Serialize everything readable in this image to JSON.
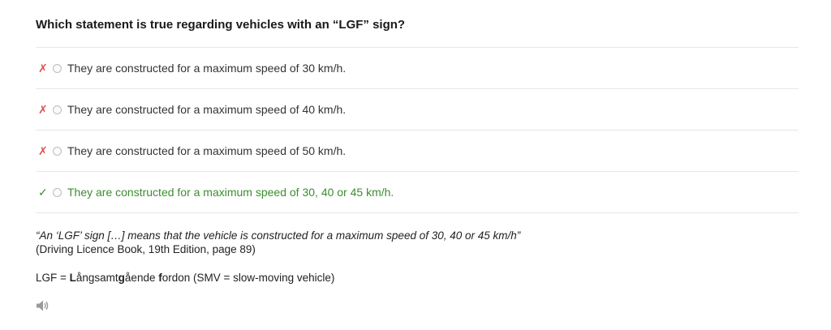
{
  "question": "Which statement is true regarding vehicles with an “LGF” sign?",
  "options": [
    {
      "mark": "✗",
      "status": "wrong",
      "text": "They are constructed for a maximum speed of 30 km/h."
    },
    {
      "mark": "✗",
      "status": "wrong",
      "text": "They are constructed for a maximum speed of 40 km/h."
    },
    {
      "mark": "✗",
      "status": "wrong",
      "text": "They are constructed for a maximum speed of 50 km/h."
    },
    {
      "mark": "✓",
      "status": "correct",
      "text": "They are constructed for a maximum speed of 30, 40 or 45 km/h."
    }
  ],
  "explanation": {
    "quote": "“An ‘LGF’ sign […] means that the vehicle is constructed for a maximum speed of 30, 40 or 45 km/h”",
    "source": "(Driving Licence Book, 19th Edition, page 89)"
  },
  "abbreviation": {
    "prefix": "LGF = ",
    "w1_bold": "L",
    "w1_rest": "ångsamt",
    "w2_bold": "g",
    "w2_rest": "ående ",
    "w3_bold": "f",
    "w3_rest": "ordon",
    "suffix": " (SMV = slow-moving vehicle)"
  },
  "colors": {
    "wrong": "#d9534f",
    "correct": "#3c8d2f"
  },
  "icons": {
    "audio": "speaker-icon"
  }
}
